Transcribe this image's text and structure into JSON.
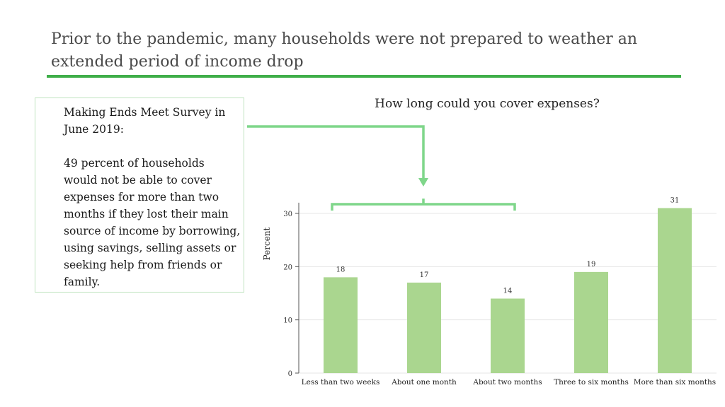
{
  "slide": {
    "title": "Prior to the pandemic, many households were not prepared to weather an extended period of income drop"
  },
  "note": {
    "heading": "Making Ends Meet Survey in June 2019:",
    "body": "49 percent of households would not be able to cover expenses for more than two months if they lost their main source of income by borrowing, using savings, selling assets or seeking help from friends or family."
  },
  "colors": {
    "accent": "#3fae49",
    "bar": "#aad68f",
    "annotation": "#7fd68a",
    "grid": "#e6e6e6"
  },
  "chart_data": {
    "type": "bar",
    "title": "How long could you cover expenses?",
    "xlabel": "",
    "ylabel": "Percent",
    "categories": [
      "Less than two weeks",
      "About one month",
      "About two months",
      "Three to six months",
      "More than six months"
    ],
    "values": [
      18,
      17,
      14,
      19,
      31
    ],
    "data_labels": [
      "18",
      "17",
      "14",
      "19",
      "31"
    ],
    "ylim": [
      0,
      32
    ],
    "yticks": [
      0,
      10,
      20,
      30
    ],
    "grid": "horizontal",
    "legend": "none"
  }
}
